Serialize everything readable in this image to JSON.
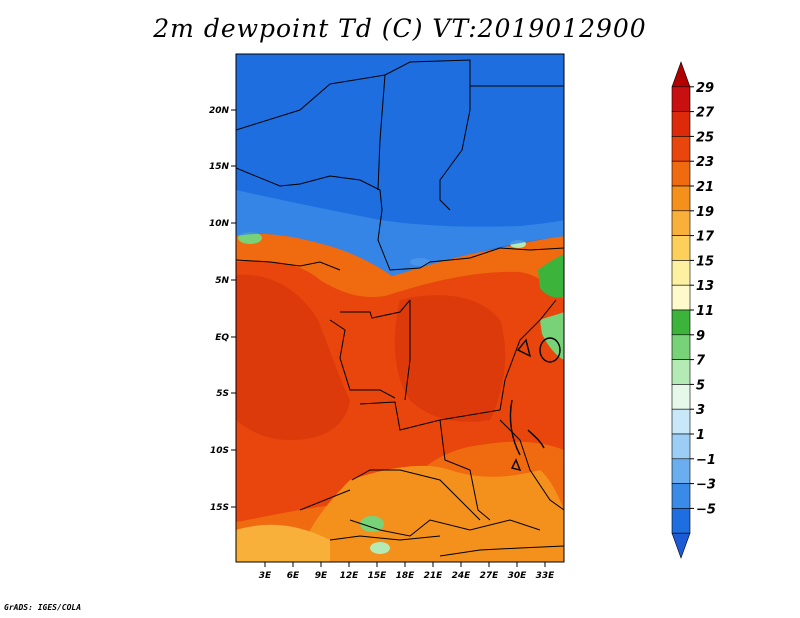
{
  "title": "2m dewpoint Td (C) VT:2019012900",
  "credit": "GrADS: IGES/COLA",
  "map": {
    "lat_labels": [
      "20N",
      "15N",
      "10N",
      "5N",
      "EQ",
      "5S",
      "10S",
      "15S"
    ],
    "lon_labels": [
      "3E",
      "6E",
      "9E",
      "12E",
      "15E",
      "18E",
      "21E",
      "24E",
      "27E",
      "30E",
      "33E"
    ]
  },
  "colorbar": {
    "labels": [
      "29",
      "27",
      "25",
      "23",
      "21",
      "19",
      "17",
      "15",
      "13",
      "11",
      "9",
      "7",
      "5",
      "3",
      "1",
      "−1",
      "−3",
      "−5"
    ],
    "colors": [
      "#b00000",
      "#c81010",
      "#dc2a0a",
      "#e8460c",
      "#f06a10",
      "#f4901c",
      "#f8b03a",
      "#fcd05a",
      "#fdf0a0",
      "#fffacc",
      "#3cb43c",
      "#78d278",
      "#b4eab4",
      "#e6f8ea",
      "#c8e8fa",
      "#9ccdf5",
      "#6aaef0",
      "#3a8ae8",
      "#1e6ee0",
      "#1c5ad6"
    ]
  }
}
